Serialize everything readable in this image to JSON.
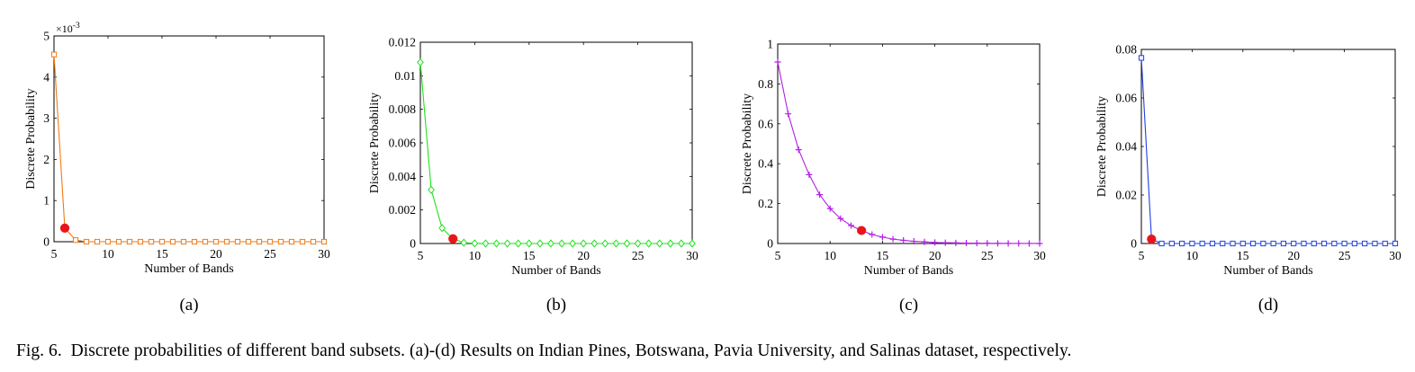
{
  "figure": {
    "caption_prefix": "Fig. 6.",
    "caption_text": "Discrete probabilities of different band subsets. (a)-(d) Results on Indian Pines, Botswana, Pavia University, and Salinas dataset, respectively."
  },
  "chart_data": [
    {
      "type": "line",
      "panel_label": "(a)",
      "dataset": "Indian Pines",
      "xlabel": "Number of Bands",
      "ylabel": "Discrete Probability",
      "xlim": [
        5,
        30
      ],
      "ylim": [
        0,
        0.005
      ],
      "xticks": [
        5,
        10,
        15,
        20,
        25,
        30
      ],
      "xtick_labels": [
        "5",
        "10",
        "15",
        "20",
        "25",
        "30"
      ],
      "yticks": [
        0,
        0.001,
        0.002,
        0.003,
        0.004,
        0.005
      ],
      "ytick_labels": [
        "0",
        "1",
        "2",
        "3",
        "4",
        "5"
      ],
      "scale_label": "×10^-3",
      "color": "#f07a17",
      "marker": "square",
      "series": [
        {
          "name": "Indian Pines",
          "x": [
            5,
            6,
            7,
            8,
            9,
            10,
            11,
            12,
            13,
            14,
            15,
            16,
            17,
            18,
            19,
            20,
            21,
            22,
            23,
            24,
            25,
            26,
            27,
            28,
            29,
            30
          ],
          "values": [
            0.00455,
            0.00033,
            4e-05,
            0,
            0,
            0,
            0,
            0,
            0,
            0,
            0,
            0,
            0,
            0,
            0,
            0,
            0,
            0,
            0,
            0,
            0,
            0,
            0,
            0,
            0,
            0
          ]
        }
      ],
      "highlight": {
        "x": 6,
        "y": 0.00033,
        "color": "#e8161b"
      }
    },
    {
      "type": "line",
      "panel_label": "(b)",
      "dataset": "Botswana",
      "xlabel": "Number of Bands",
      "ylabel": "Discrete Probability",
      "xlim": [
        5,
        30
      ],
      "ylim": [
        0,
        0.012
      ],
      "xticks": [
        5,
        10,
        15,
        20,
        25,
        30
      ],
      "xtick_labels": [
        "5",
        "10",
        "15",
        "20",
        "25",
        "30"
      ],
      "yticks": [
        0,
        0.002,
        0.004,
        0.006,
        0.008,
        0.01,
        0.012
      ],
      "ytick_labels": [
        "0",
        "0.002",
        "0.004",
        "0.006",
        "0.008",
        "0.01",
        "0.012"
      ],
      "color": "#22e01f",
      "marker": "diamond",
      "series": [
        {
          "name": "Botswana",
          "x": [
            5,
            6,
            7,
            8,
            9,
            10,
            11,
            12,
            13,
            14,
            15,
            16,
            17,
            18,
            19,
            20,
            21,
            22,
            23,
            24,
            25,
            26,
            27,
            28,
            29,
            30
          ],
          "values": [
            0.0108,
            0.0032,
            0.00092,
            0.00028,
            5e-05,
            1e-05,
            0,
            0,
            0,
            0,
            0,
            0,
            0,
            0,
            0,
            0,
            0,
            0,
            0,
            0,
            0,
            0,
            0,
            0,
            0,
            0
          ]
        }
      ],
      "highlight": {
        "x": 8,
        "y": 0.00028,
        "color": "#e8161b"
      }
    },
    {
      "type": "line",
      "panel_label": "(c)",
      "dataset": "Pavia University",
      "xlabel": "Number of Bands",
      "ylabel": "Discrete Probability",
      "xlim": [
        5,
        30
      ],
      "ylim": [
        0,
        1
      ],
      "xticks": [
        5,
        10,
        15,
        20,
        25,
        30
      ],
      "xtick_labels": [
        "5",
        "10",
        "15",
        "20",
        "25",
        "30"
      ],
      "yticks": [
        0,
        0.2,
        0.4,
        0.6,
        0.8,
        1
      ],
      "ytick_labels": [
        "0",
        "0.2",
        "0.4",
        "0.6",
        "0.8",
        "1"
      ],
      "color": "#b21fe6",
      "marker": "plus",
      "series": [
        {
          "name": "Pavia University",
          "x": [
            5,
            6,
            7,
            8,
            9,
            10,
            11,
            12,
            13,
            14,
            15,
            16,
            17,
            18,
            19,
            20,
            21,
            22,
            23,
            24,
            25,
            26,
            27,
            28,
            29,
            30
          ],
          "values": [
            0.91,
            0.65,
            0.47,
            0.345,
            0.245,
            0.175,
            0.125,
            0.09,
            0.065,
            0.045,
            0.032,
            0.022,
            0.016,
            0.011,
            0.008,
            0.005,
            0.004,
            0.003,
            0.002,
            0.0015,
            0.001,
            0.0007,
            0.0005,
            0.0003,
            0.0002,
            0.0001
          ]
        }
      ],
      "highlight": {
        "x": 13,
        "y": 0.065,
        "color": "#e8161b"
      }
    },
    {
      "type": "line",
      "panel_label": "(d)",
      "dataset": "Salinas",
      "xlabel": "Number of Bands",
      "ylabel": "Discrete Probability",
      "xlim": [
        5,
        30
      ],
      "ylim": [
        0,
        0.08
      ],
      "xticks": [
        5,
        10,
        15,
        20,
        25,
        30
      ],
      "xtick_labels": [
        "5",
        "10",
        "15",
        "20",
        "25",
        "30"
      ],
      "yticks": [
        0,
        0.02,
        0.04,
        0.06,
        0.08
      ],
      "ytick_labels": [
        "0",
        "0.02",
        "0.04",
        "0.06",
        "0.08"
      ],
      "color": "#1f3fe0",
      "marker": "square",
      "series": [
        {
          "name": "Salinas",
          "x": [
            5,
            6,
            7,
            8,
            9,
            10,
            11,
            12,
            13,
            14,
            15,
            16,
            17,
            18,
            19,
            20,
            21,
            22,
            23,
            24,
            25,
            26,
            27,
            28,
            29,
            30
          ],
          "values": [
            0.0765,
            0.0018,
            0,
            0,
            0,
            0,
            0,
            0,
            0,
            0,
            0,
            0,
            0,
            0,
            0,
            0,
            0,
            0,
            0,
            0,
            0,
            0,
            0,
            0,
            0,
            0
          ]
        }
      ],
      "highlight": {
        "x": 6,
        "y": 0.0018,
        "color": "#e8161b"
      }
    }
  ]
}
